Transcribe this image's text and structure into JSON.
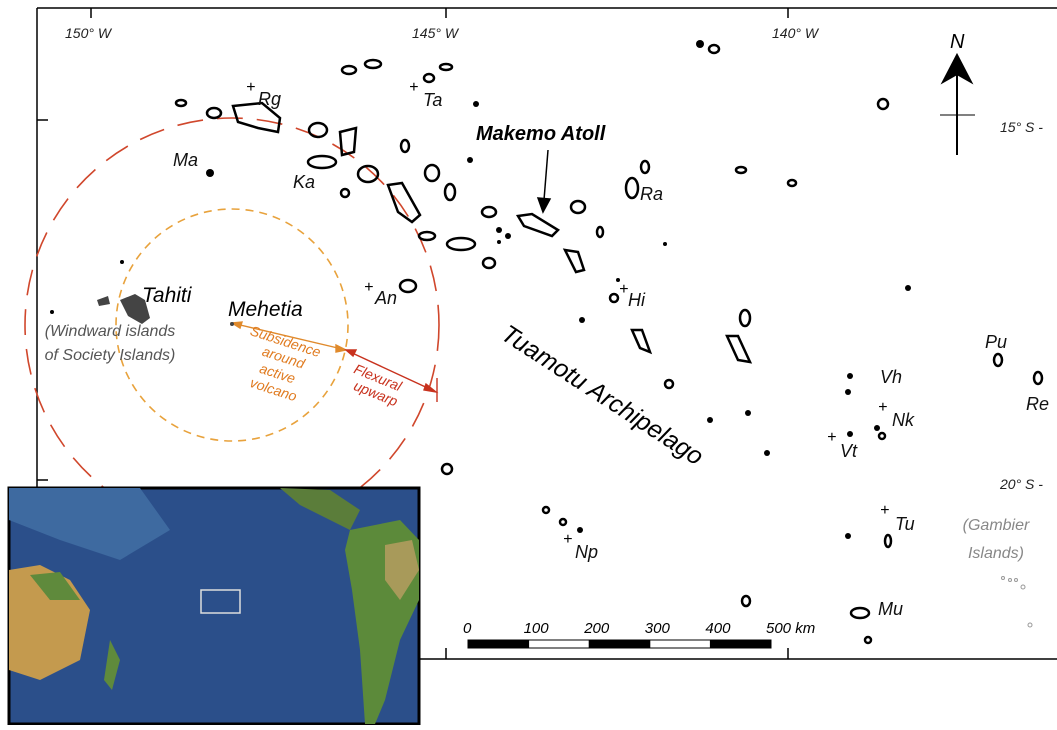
{
  "map": {
    "longitudes": [
      "150° W",
      "145° W",
      "140° W"
    ],
    "latitudes": [
      "15° S -",
      "20° S -"
    ],
    "north": "N",
    "islands": [
      "Rg",
      "Ta",
      "Ma",
      "Ka",
      "Ra",
      "An",
      "Hi",
      "Pu",
      "Vh",
      "Nk",
      "Re",
      "Vt",
      "Tu",
      "Np",
      "Mu"
    ],
    "makemo": "Makemo Atoll",
    "tahiti": "Tahiti",
    "mehetia": "Mehetia",
    "windward": [
      "(Windward islands",
      "of Society Islands)"
    ],
    "subsidence": [
      "Subsidence",
      "around",
      "active",
      "volcano"
    ],
    "flexural": [
      "Flexural",
      "upwarp"
    ],
    "archipelago": "Tuamotu Archipelago",
    "gambier": [
      "(Gambier",
      "Islands)"
    ],
    "scale": [
      "0",
      "100",
      "200",
      "300",
      "400",
      "500 km"
    ]
  }
}
